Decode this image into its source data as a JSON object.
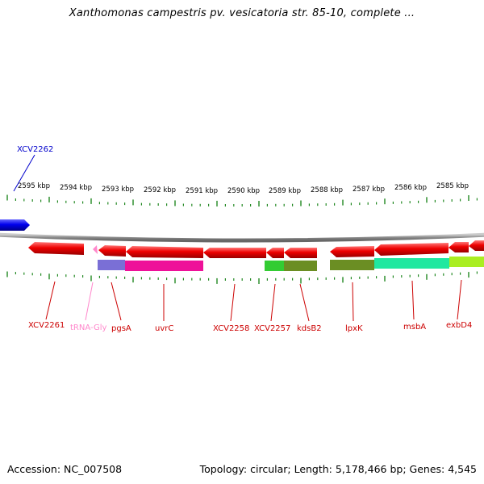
{
  "title": "Xanthomonas campestris pv. vesicatoria str. 85-10, complete ...",
  "footer": {
    "accession": "Accession: NC_007508",
    "summary": "Topology: circular; Length: 5,178,466 bp; Genes: 4,545"
  },
  "colors": {
    "backbone": "#888888",
    "tick": "#228822",
    "red_gene": "#ee0000",
    "blue_gene": "#0000ee",
    "trna": "#ff88cc",
    "label_red": "#cc0000",
    "label_blue": "#0000cc",
    "label_pink": "#ff88cc"
  },
  "scale": {
    "unit": "kbp",
    "labels": [
      "2595 kbp",
      "2594 kbp",
      "2593 kbp",
      "2592 kbp",
      "2591 kbp",
      "2590 kbp",
      "2589 kbp",
      "2588 kbp",
      "2587 kbp",
      "2586 kbp",
      "2585 kbp"
    ]
  },
  "genes": [
    {
      "name": "XCV2262",
      "strand": "+",
      "color": "blue"
    },
    {
      "name": "XCV2261",
      "strand": "-",
      "color": "red"
    },
    {
      "name": "tRNA-Gly",
      "strand": "-",
      "color": "pink"
    },
    {
      "name": "pgsA",
      "strand": "-",
      "color": "red"
    },
    {
      "name": "uvrC",
      "strand": "-",
      "color": "red"
    },
    {
      "name": "XCV2258",
      "strand": "-",
      "color": "red"
    },
    {
      "name": "XCV2257",
      "strand": "-",
      "color": "red"
    },
    {
      "name": "kdsB2",
      "strand": "-",
      "color": "red"
    },
    {
      "name": "lpxK",
      "strand": "-",
      "color": "red"
    },
    {
      "name": "msbA",
      "strand": "-",
      "color": "red"
    },
    {
      "name": "exbD4",
      "strand": "-",
      "color": "red"
    }
  ],
  "annotation_colors": [
    "#7a6fd6",
    "#ee1199",
    "#33cc33",
    "#6b8e23",
    "#20e8a0",
    "#aaee22"
  ]
}
